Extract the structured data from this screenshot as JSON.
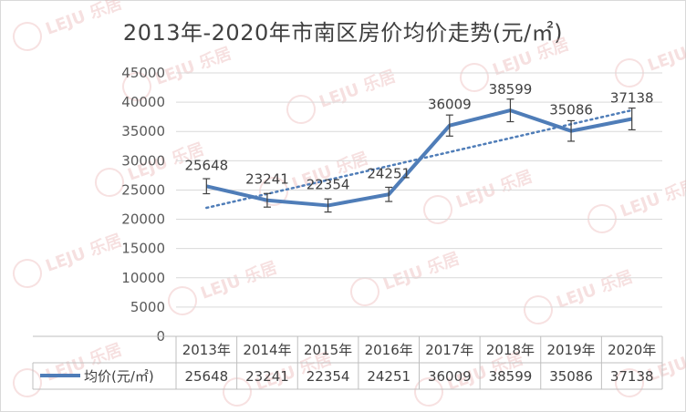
{
  "chart_data": {
    "type": "line",
    "title": "2013年-2020年市南区房价均价走势(元/㎡)",
    "categories": [
      "2013年",
      "2014年",
      "2015年",
      "2016年",
      "2017年",
      "2018年",
      "2019年",
      "2020年"
    ],
    "series": [
      {
        "name": "均价(元/㎡)",
        "values": [
          25648,
          23241,
          22354,
          24251,
          36009,
          38599,
          35086,
          37138
        ],
        "color": "#4f7db8"
      }
    ],
    "ylim": [
      0,
      45000
    ],
    "yticks": [
      "0",
      "5000",
      "10000",
      "15000",
      "20000",
      "25000",
      "30000",
      "35000",
      "40000",
      "45000"
    ],
    "gridlines": true,
    "error_bars": true,
    "trendline": "linear, dotted",
    "data_table": true,
    "watermark": "LEJU 乐居"
  }
}
